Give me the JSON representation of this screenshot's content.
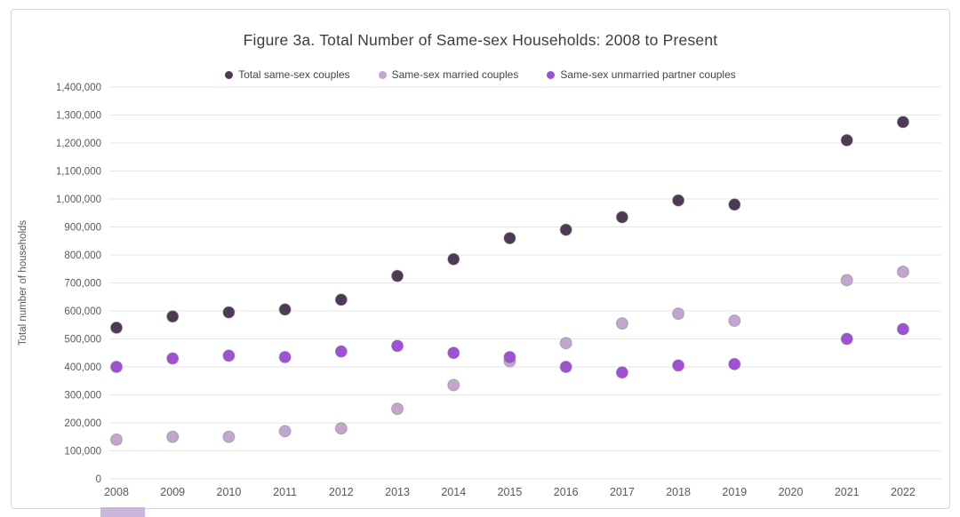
{
  "page": {
    "background": "#ffffff",
    "card_border_color": "#d8d8d8"
  },
  "chart_data": {
    "type": "scatter",
    "title": "Figure 3a. Total Number of Same-sex Households: 2008 to Present",
    "ylabel": "Total number of households",
    "xlabel": "",
    "categories": [
      "2008",
      "2009",
      "2010",
      "2011",
      "2012",
      "2013",
      "2014",
      "2015",
      "2016",
      "2017",
      "2018",
      "2019",
      "2020",
      "2021",
      "2022"
    ],
    "ylim": [
      0,
      1400000
    ],
    "ytick_step": 100000,
    "ytick_labels": [
      "0",
      "100,000",
      "200,000",
      "300,000",
      "400,000",
      "500,000",
      "600,000",
      "700,000",
      "800,000",
      "900,000",
      "1,000,000",
      "1,100,000",
      "1,200,000",
      "1,300,000",
      "1,400,000"
    ],
    "grid": true,
    "legend_position": "top-center",
    "marker": "circle",
    "marker_outline": "rgba(120,115,125,0.45)",
    "series": [
      {
        "name": "Total same-sex couples",
        "color": "#4e3a54",
        "values": [
          540000,
          580000,
          595000,
          605000,
          640000,
          725000,
          785000,
          860000,
          890000,
          935000,
          995000,
          980000,
          null,
          1210000,
          1275000
        ]
      },
      {
        "name": "Same-sex married couples",
        "color": "#c2a6ce",
        "values": [
          140000,
          150000,
          150000,
          170000,
          180000,
          250000,
          335000,
          420000,
          485000,
          555000,
          590000,
          565000,
          null,
          710000,
          740000
        ]
      },
      {
        "name": "Same-sex unmarried partner couples",
        "color": "#9e51d4",
        "values": [
          400000,
          430000,
          440000,
          435000,
          455000,
          475000,
          450000,
          435000,
          400000,
          380000,
          405000,
          410000,
          null,
          500000,
          535000
        ]
      }
    ]
  },
  "artifact": {
    "color": "#cbb7de"
  }
}
